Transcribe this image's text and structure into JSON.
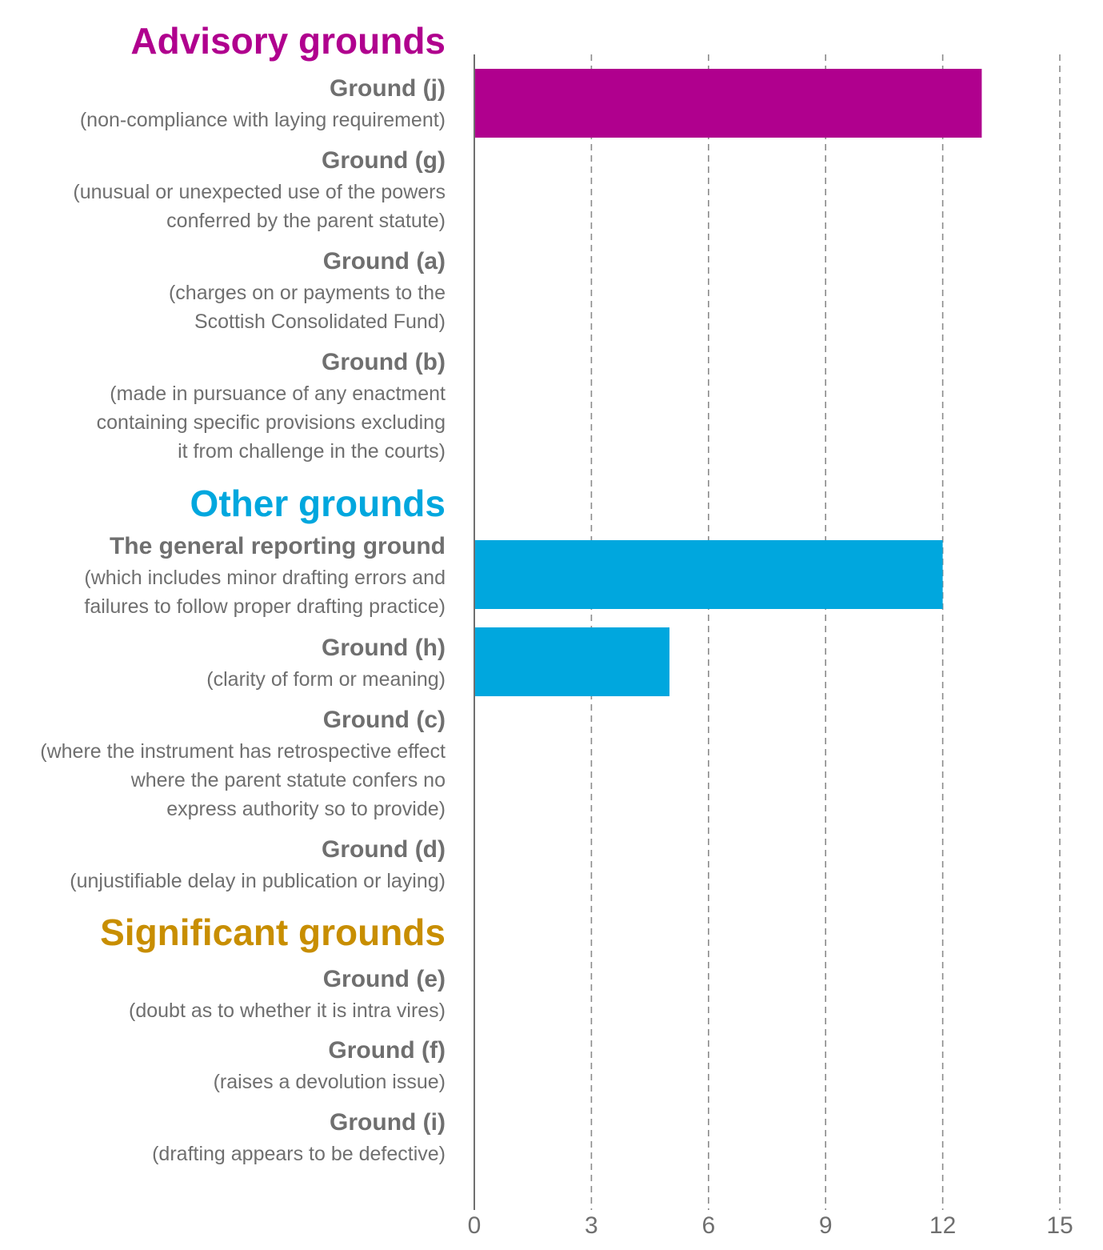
{
  "chart_data": {
    "type": "bar",
    "orientation": "horizontal",
    "title": "",
    "xlabel": "",
    "ylabel": "",
    "xlim": [
      0,
      15
    ],
    "ticks": [
      0,
      3,
      6,
      9,
      12,
      15
    ],
    "grid": true,
    "legend": "none",
    "groups": [
      {
        "title": "Advisory grounds",
        "color": "#b0008e",
        "categories": [
          {
            "name": "Ground (j)",
            "description": [
              "(non-compliance with laying requirement)"
            ],
            "value": 13
          },
          {
            "name": "Ground (g)",
            "description": [
              "(unusual or unexpected use of the powers",
              "conferred by the parent statute)"
            ],
            "value": 0
          },
          {
            "name": "Ground (a)",
            "description": [
              "(charges on or payments to the",
              "Scottish Consolidated Fund)"
            ],
            "value": 0
          },
          {
            "name": "Ground (b)",
            "description": [
              "(made in pursuance of any enactment",
              "containing specific provisions excluding",
              "it from challenge in the courts)"
            ],
            "value": 0
          }
        ]
      },
      {
        "title": "Other grounds",
        "color": "#00a7de",
        "categories": [
          {
            "name": "The general reporting ground",
            "description": [
              "(which includes minor drafting errors and",
              "failures to follow proper drafting practice)"
            ],
            "value": 12
          },
          {
            "name": "Ground (h)",
            "description": [
              "(clarity of form or meaning)"
            ],
            "value": 5
          },
          {
            "name": "Ground (c)",
            "description": [
              "(where the instrument has retrospective effect",
              "where the parent statute confers no",
              "express authority so to provide)"
            ],
            "value": 0
          },
          {
            "name": "Ground (d)",
            "description": [
              "(unjustifiable delay in publication or laying)"
            ],
            "value": 0
          }
        ]
      },
      {
        "title": "Significant grounds",
        "color": "#c88e00",
        "categories": [
          {
            "name": "Ground (e)",
            "description": [
              "(doubt as to whether it is intra vires)"
            ],
            "value": 0
          },
          {
            "name": "Ground (f)",
            "description": [
              "(raises a devolution issue)"
            ],
            "value": 0
          },
          {
            "name": "Ground (i)",
            "description": [
              "(drafting appears to be defective)"
            ],
            "value": 0
          }
        ]
      }
    ]
  }
}
